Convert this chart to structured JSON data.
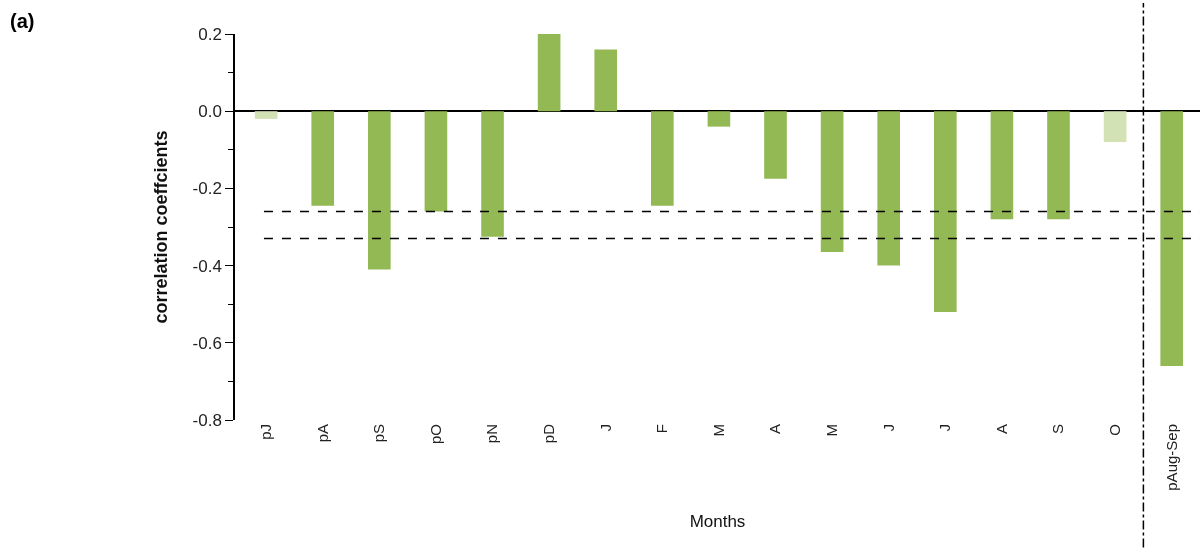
{
  "chart_data": {
    "type": "bar",
    "categories": [
      "pJ",
      "pA",
      "pS",
      "pO",
      "pN",
      "pD",
      "J",
      "F",
      "M",
      "A",
      "M",
      "J",
      "J",
      "A",
      "S",
      "O",
      "pAug-Sep"
    ],
    "values": [
      -0.02,
      -0.245,
      -0.41,
      -0.26,
      -0.325,
      0.2,
      0.16,
      -0.245,
      -0.04,
      -0.175,
      -0.365,
      -0.4,
      -0.52,
      -0.28,
      -0.28,
      -0.08,
      -0.66
    ],
    "colors": [
      "#d3e2b4",
      "#93b955",
      "#93b955",
      "#93b955",
      "#93b955",
      "#93b955",
      "#93b955",
      "#93b955",
      "#93b955",
      "#93b955",
      "#93b955",
      "#93b955",
      "#93b955",
      "#93b955",
      "#93b955",
      "#d3e2b4",
      "#93b955"
    ],
    "xlabel": "Months",
    "ylabel": "correlation coeffcients",
    "annotations": [
      "(a)"
    ],
    "ylim": [
      -0.8,
      0.2
    ],
    "yticks": [
      {
        "value": 0.2,
        "label": "0.2"
      },
      {
        "value": 0,
        "label": "0.0"
      },
      -0.2,
      -0.4,
      -0.6,
      -0.8
    ],
    "ref_lines": [
      {
        "axis": "y",
        "value": -0.26,
        "line_style": "dashed",
        "color": "#000000"
      },
      {
        "axis": "y",
        "value": -0.33,
        "line_style": "dashed",
        "color": "#000000"
      },
      {
        "axis": "x",
        "value": "pAug-Sep",
        "line_style": "dashdot",
        "color": "#000000"
      }
    ]
  }
}
